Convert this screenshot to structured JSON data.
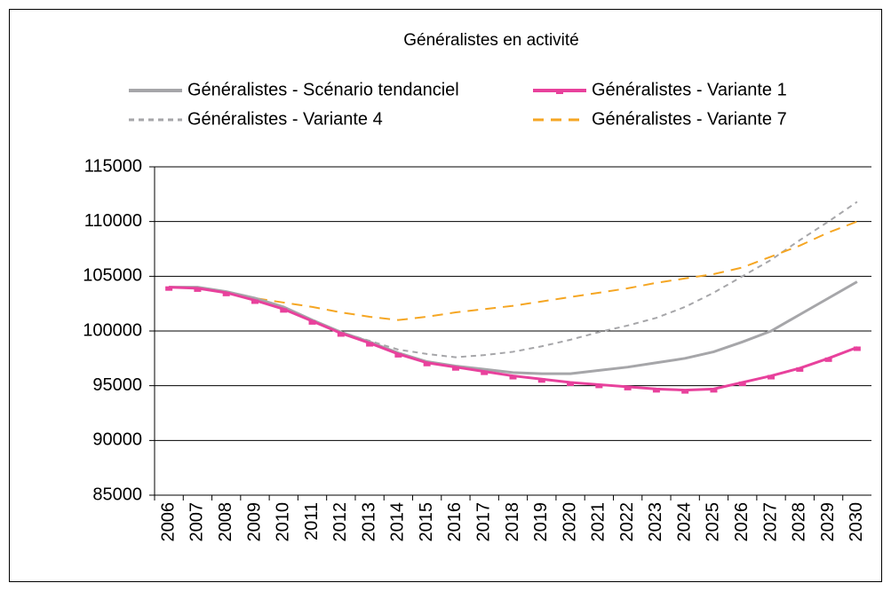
{
  "chart_data": {
    "type": "line",
    "title": "Généralistes en activité",
    "categories": [
      "2006",
      "2007",
      "2008",
      "2009",
      "2010",
      "2011",
      "2012",
      "2013",
      "2014",
      "2015",
      "2016",
      "2017",
      "2018",
      "2019",
      "2020",
      "2021",
      "2022",
      "2023",
      "2024",
      "2025",
      "2026",
      "2027",
      "2028",
      "2029",
      "2030"
    ],
    "series": [
      {
        "name": "Généralistes - Scénario tendanciel",
        "color": "#a6a6a9",
        "dash": "solid",
        "markers": false,
        "values": [
          104000,
          104000,
          103600,
          103000,
          102200,
          101000,
          99900,
          99000,
          98000,
          97200,
          96800,
          96500,
          96200,
          96100,
          96100,
          96400,
          96700,
          97100,
          97500,
          98100,
          99000,
          100000,
          101500,
          103000,
          104500
        ]
      },
      {
        "name": "Généralistes - Variante 1",
        "color": "#e8419c",
        "dash": "solid",
        "markers": true,
        "values": [
          104000,
          103900,
          103500,
          102800,
          102000,
          100900,
          99800,
          98900,
          97900,
          97100,
          96700,
          96300,
          95900,
          95600,
          95300,
          95100,
          94900,
          94700,
          94600,
          94700,
          95300,
          95900,
          96600,
          97500,
          98500
        ]
      },
      {
        "name": "Généralistes - Variante 4",
        "color": "#a6a6a9",
        "dash": "dashed",
        "markers": false,
        "values": [
          104000,
          104000,
          103600,
          103000,
          102200,
          101000,
          99900,
          99100,
          98300,
          97900,
          97600,
          97800,
          98100,
          98600,
          99200,
          99900,
          100500,
          101200,
          102200,
          103500,
          105000,
          106500,
          108300,
          110000,
          111800
        ]
      },
      {
        "name": "Généralistes - Variante 7",
        "color": "#f5a623",
        "dash": "dashed",
        "markers": false,
        "values": [
          104000,
          104000,
          103600,
          103000,
          102600,
          102200,
          101700,
          101300,
          101000,
          101300,
          101700,
          102000,
          102300,
          102700,
          103100,
          103500,
          103900,
          104400,
          104800,
          105200,
          105800,
          106800,
          107800,
          109000,
          110000
        ]
      }
    ],
    "ylim": [
      85000,
      115000
    ],
    "yticks": [
      85000,
      90000,
      95000,
      100000,
      105000,
      110000,
      115000
    ],
    "grid": true
  }
}
